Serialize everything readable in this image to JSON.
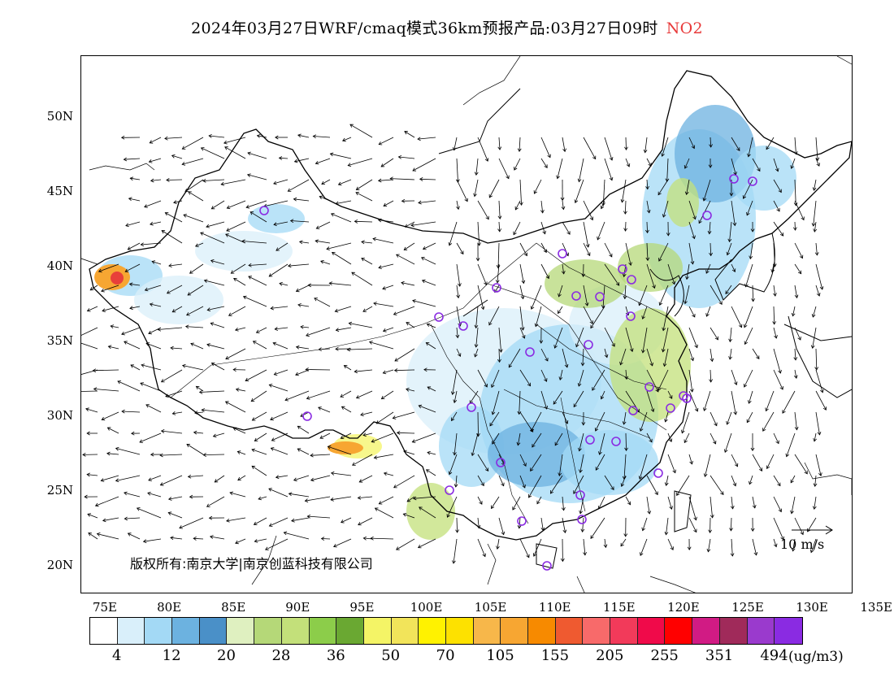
{
  "title": {
    "main": "2024年03月27日WRF/cmaq模式36km预报产品:03月27日09时",
    "pollutant": "NO2"
  },
  "map": {
    "lat_labels": [
      "50N",
      "45N",
      "40N",
      "35N",
      "30N",
      "25N",
      "20N"
    ],
    "lon_labels": [
      "75E",
      "80E",
      "85E",
      "90E",
      "95E",
      "100E",
      "105E",
      "110E",
      "115E",
      "120E",
      "125E",
      "130E",
      "135E"
    ],
    "copyright": "版权所有:南京大学|南京创蓝科技有限公司",
    "wind_reference": "10 m/s",
    "colors": {
      "border": "#000000",
      "station_marker": "#8a2be2",
      "hotspot": "#e8403a"
    }
  },
  "legend": {
    "colors": [
      "#ffffff",
      "#d9effa",
      "#a3d9f5",
      "#6cb2e0",
      "#4a90c8",
      "#dff0c0",
      "#b5d878",
      "#c3e07a",
      "#8ccd4a",
      "#6aa832",
      "#f4f466",
      "#f2e45a",
      "#fff200",
      "#fde100",
      "#f7b74a",
      "#f7a632",
      "#f78a00",
      "#ef5a30",
      "#f86a6a",
      "#f23a5a",
      "#f00a4a",
      "#ff0000",
      "#d11b84",
      "#a02a5a",
      "#9a3acd",
      "#8a2be2"
    ],
    "ticks": [
      "4",
      "12",
      "20",
      "28",
      "36",
      "50",
      "70",
      "105",
      "155",
      "205",
      "255",
      "351",
      "494"
    ],
    "unit": "(ug/m3)"
  }
}
